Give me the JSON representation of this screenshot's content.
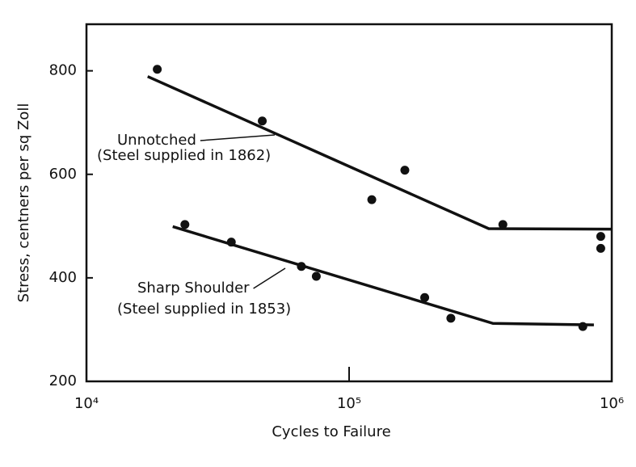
{
  "chart_data": {
    "type": "scatter",
    "xlabel": "Cycles to Failure",
    "ylabel": "Stress, centners per sq Zoll",
    "xscale": "log",
    "xlim": [
      10000,
      1000000
    ],
    "xticks": [
      {
        "value": 10000,
        "label": "10⁴"
      },
      {
        "value": 100000,
        "label": "10⁵"
      },
      {
        "value": 1000000,
        "label": "10⁶"
      }
    ],
    "ylim": [
      200,
      890
    ],
    "yticks": [
      200,
      400,
      600,
      800
    ],
    "color": "#111111",
    "series": [
      {
        "name": "Unnotched",
        "note": "(Steel supplied in 1862)",
        "x": [
          18600,
          46700,
          122000,
          163000,
          385000,
          908000,
          908000
        ],
        "values": [
          803,
          703,
          551,
          608,
          503,
          480,
          457
        ],
        "fit_x": [
          17100,
          340000,
          1000000
        ],
        "fit_values": [
          789,
          495,
          494
        ]
      },
      {
        "name": "Sharp Shoulder",
        "note": "(Steel supplied in 1853)",
        "x": [
          23700,
          35600,
          65800,
          75000,
          194000,
          244000,
          776000
        ],
        "values": [
          503,
          469,
          422,
          403,
          362,
          322,
          306
        ],
        "fit_x": [
          21300,
          353000,
          855000
        ],
        "fit_values": [
          499,
          312,
          309
        ]
      }
    ]
  }
}
